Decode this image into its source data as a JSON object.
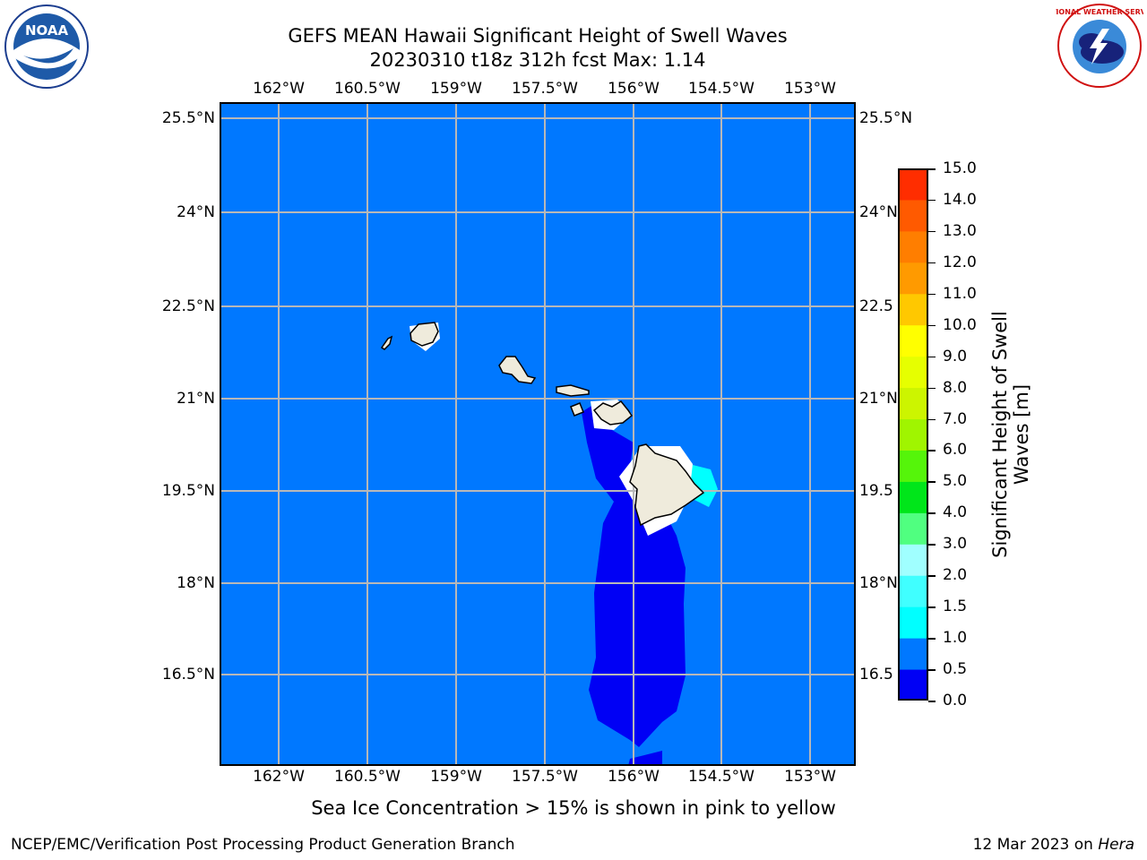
{
  "title_line1": "GEFS MEAN Hawaii Significant Height of Swell Waves",
  "title_line2": "20230310 t18z 312h fcst   Max: 1.14",
  "lon_labels": [
    "162°W",
    "160.5°W",
    "159°W",
    "157.5°W",
    "156°W",
    "154.5°W",
    "153°W"
  ],
  "lat_labels": [
    "25.5°N",
    "24°N",
    "22.5°N",
    "21°N",
    "19.5°N",
    "18°N",
    "16.5°N"
  ],
  "lat_labels_right": [
    "25.5°N",
    "24°N",
    "22.5",
    "21°N",
    "19.5",
    "18°N",
    "16.5"
  ],
  "colorbar": {
    "title": "Significant Height of Swell Waves [m]",
    "ticks": [
      "0.0",
      "0.5",
      "1.0",
      "1.5",
      "2.0",
      "3.0",
      "4.0",
      "5.0",
      "6.0",
      "7.0",
      "8.0",
      "9.0",
      "10.0",
      "11.0",
      "12.0",
      "13.0",
      "14.0",
      "15.0"
    ],
    "colors": [
      "#0000f5",
      "#0078ff",
      "#00ffff",
      "#40ffff",
      "#a0ffff",
      "#50ff80",
      "#00e61a",
      "#55f50a",
      "#a0f500",
      "#ccf500",
      "#e6ff00",
      "#ffff00",
      "#ffc800",
      "#ff9a00",
      "#ff7e00",
      "#ff5a00",
      "#ff2d00"
    ]
  },
  "colors": {
    "ocean": "#0078ff",
    "deep_band": "#0000f5",
    "swell_high": "#00ffff",
    "land": "#efebdc"
  },
  "subtitle": "Sea Ice Concentration > 15% is shown in pink to yellow",
  "footer_left": "NCEP/EMC/Verification Post Processing Product Generation Branch",
  "footer_date": "12 Mar 2023 on ",
  "footer_machine": "Hera",
  "logos": {
    "left": "NOAA",
    "right": "NATIONAL WEATHER SERVICE"
  }
}
